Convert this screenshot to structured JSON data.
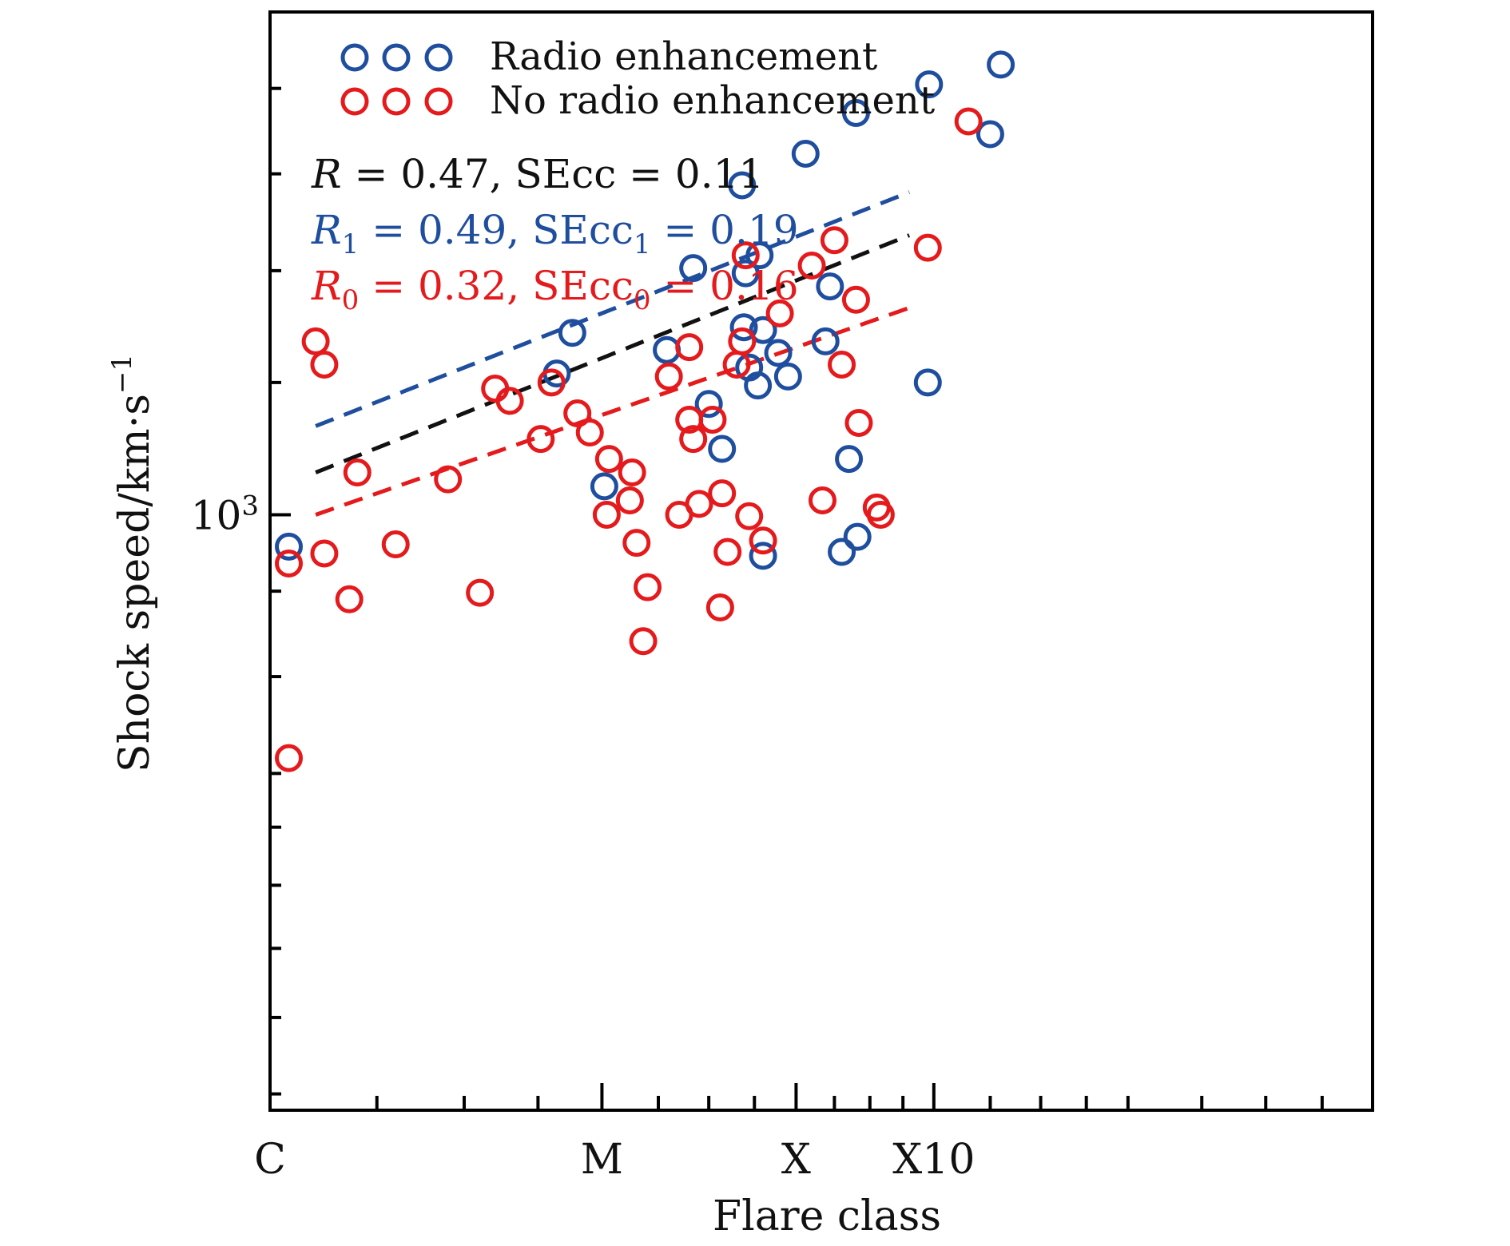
{
  "chart_data": {
    "type": "scatter",
    "x_scale": "log",
    "y_scale": "log",
    "xlim": [
      1,
      10
    ],
    "ylim": [
      440,
      2000
    ],
    "xlabel": "Flare class",
    "ylabel": "Shock speed/km·s",
    "ylabel_sup": "−1",
    "x_tick_labels": [
      {
        "value": 1,
        "label": "C"
      },
      {
        "value": 2,
        "label": "M"
      },
      {
        "value": 3,
        "label": "X"
      },
      {
        "value": 4,
        "label": "X10"
      }
    ],
    "y_tick_labels": [
      {
        "value": 1000,
        "base": "10",
        "exp": "3"
      }
    ],
    "legend": {
      "placement": "top-left",
      "entries": [
        {
          "label": "Radio enhancement",
          "color": "#1f4e9e"
        },
        {
          "label": "No radio enhancement",
          "color": "#e41a1c"
        }
      ]
    },
    "annotations": [
      {
        "id": "all",
        "color": "#111111",
        "r_sym": "R",
        "sub": "",
        "r_val": "= 0.47,",
        "se_sym": "SEcc",
        "se_val": "= 0.11"
      },
      {
        "id": "radio",
        "color": "#1f4e9e",
        "r_sym": "R",
        "sub": "1",
        "r_val": "= 0.49,",
        "se_sym": "SEcc",
        "se_val": "= 0.19"
      },
      {
        "id": "noradio",
        "color": "#e41a1c",
        "r_sym": "R",
        "sub": "0",
        "r_val": "= 0.32,",
        "se_sym": "SEcc",
        "se_val": "= 0.16"
      }
    ],
    "series": [
      {
        "name": "Radio enhancement",
        "color": "#1f4e9e",
        "points": [
          [
            1.04,
            957
          ],
          [
            2.8,
            1290
          ],
          [
            2.95,
            1210
          ],
          [
            3.22,
            1370
          ],
          [
            4.6,
            1860
          ],
          [
            3.4,
            1740
          ],
          [
            3.96,
            1810
          ],
          [
            3.06,
            1645
          ],
          [
            2.68,
            1575
          ],
          [
            2.7,
            1395
          ],
          [
            2.77,
            1195
          ],
          [
            2.69,
            1295
          ],
          [
            2.78,
            1430
          ],
          [
            2.72,
            1225
          ],
          [
            3.19,
            1270
          ],
          [
            3.3,
            950
          ],
          [
            2.5,
            1165
          ],
          [
            2.57,
            1095
          ],
          [
            2.89,
            1250
          ],
          [
            4.5,
            1690
          ],
          [
            3.95,
            1200
          ],
          [
            3.41,
            970
          ],
          [
            3.35,
            1080
          ],
          [
            1.88,
            1285
          ],
          [
            2.42,
            1405
          ],
          [
            2.01,
            1040
          ],
          [
            2.29,
            1255
          ],
          [
            2.8,
            945
          ],
          [
            1.82,
            1215
          ]
        ]
      },
      {
        "name": "No radio enhancement",
        "color": "#e41a1c",
        "points": [
          [
            1.1,
            1270
          ],
          [
            1.12,
            1230
          ],
          [
            1.2,
            1060
          ],
          [
            1.3,
            960
          ],
          [
            1.45,
            1050
          ],
          [
            1.6,
            1190
          ],
          [
            1.65,
            1170
          ],
          [
            1.95,
            1120
          ],
          [
            2.03,
            1080
          ],
          [
            2.13,
            1060
          ],
          [
            2.4,
            1140
          ],
          [
            2.42,
            1110
          ],
          [
            2.52,
            1140
          ],
          [
            2.57,
            1030
          ],
          [
            2.68,
            1270
          ],
          [
            3.1,
            1410
          ],
          [
            3.25,
            1460
          ],
          [
            3.55,
            1010
          ],
          [
            3.58,
            1000
          ],
          [
            4.3,
            1720
          ],
          [
            1.04,
            935
          ],
          [
            1.04,
            715
          ],
          [
            1.12,
            948
          ],
          [
            1.55,
            898
          ],
          [
            2.15,
            962
          ],
          [
            2.7,
            1430
          ],
          [
            3.17,
            1020
          ],
          [
            3.42,
            1135
          ],
          [
            3.95,
            1445
          ],
          [
            2.2,
            905
          ],
          [
            2.35,
            1000
          ],
          [
            2.4,
            1260
          ],
          [
            2.6,
            950
          ],
          [
            2.18,
            840
          ],
          [
            2.56,
            880
          ],
          [
            1.8,
            1200
          ],
          [
            2.9,
            1320
          ],
          [
            1.76,
            1110
          ],
          [
            2.12,
            1020
          ],
          [
            2.45,
            1015
          ],
          [
            2.65,
            1230
          ],
          [
            2.72,
            998
          ],
          [
            2.8,
            965
          ],
          [
            3.3,
            1230
          ],
          [
            3.4,
            1345
          ],
          [
            2.02,
            1000
          ],
          [
            2.3,
            1210
          ],
          [
            1.18,
            890
          ],
          [
            1.9,
            1150
          ]
        ]
      }
    ],
    "fit_lines": [
      {
        "name": "",
        "color": "#111111",
        "from": [
          1.1,
          1060
        ],
        "to": [
          3.8,
          1470
        ]
      },
      {
        "name": "",
        "color": "#1f4e9e",
        "from": [
          1.1,
          1130
        ],
        "to": [
          3.8,
          1560
        ]
      },
      {
        "name": "",
        "color": "#e41a1c",
        "from": [
          1.1,
          1000
        ],
        "to": [
          3.8,
          1330
        ]
      }
    ]
  }
}
